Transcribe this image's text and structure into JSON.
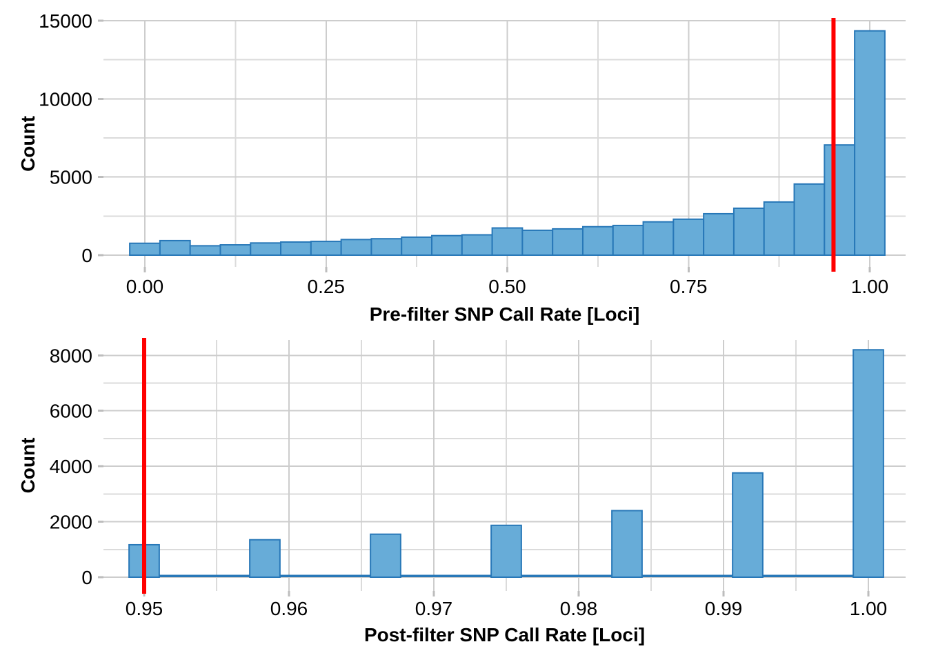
{
  "figure": {
    "background": "#FFFFFF",
    "description": "Two stacked histograms of SNP call rates with red threshold line at 0.95"
  },
  "colors": {
    "bar_fill": "#67ACD8",
    "bar_stroke": "#2878B8",
    "threshold_line": "#FF0000",
    "grid_major": "#CDCDCD",
    "grid_minor": "#DBDBDB",
    "axis_tick": "#BDBDBD",
    "text": "#000000"
  },
  "chart_data": [
    {
      "type": "bar",
      "name": "pre-filter-histogram",
      "title": "",
      "xlabel": "Pre-filter SNP Call Rate [Loci]",
      "ylabel": "Count",
      "legend": "none",
      "grid": true,
      "xlim": [
        -0.057,
        1.063
      ],
      "ylim": [
        0,
        15000
      ],
      "bin_width": 0.041667,
      "x": [
        0.0,
        0.041667,
        0.083333,
        0.125,
        0.166667,
        0.208333,
        0.25,
        0.291667,
        0.333333,
        0.375,
        0.416667,
        0.458333,
        0.5,
        0.541667,
        0.583333,
        0.625,
        0.666667,
        0.708333,
        0.75,
        0.791667,
        0.833333,
        0.875,
        0.916667,
        0.958333,
        1.0
      ],
      "counts": [
        760,
        930,
        600,
        660,
        780,
        840,
        880,
        1000,
        1050,
        1150,
        1250,
        1300,
        1740,
        1590,
        1680,
        1820,
        1900,
        2130,
        2300,
        2650,
        3000,
        3400,
        4550,
        7050,
        14350
      ],
      "vline_x": 0.95,
      "x_ticks": {
        "major": [
          0.0,
          0.25,
          0.5,
          0.75,
          1.0
        ],
        "labels": [
          "0.00",
          "0.25",
          "0.50",
          "0.75",
          "1.00"
        ],
        "minor": [
          0.125,
          0.375,
          0.625,
          0.875
        ]
      },
      "y_ticks": {
        "major": [
          0,
          5000,
          10000,
          15000
        ],
        "labels": [
          "0",
          "5000",
          "10000",
          "15000"
        ],
        "minor": [
          2500,
          7500,
          12500
        ]
      }
    },
    {
      "type": "bar",
      "name": "post-filter-histogram",
      "title": "",
      "xlabel": "Post-filter SNP Call Rate [Loci]",
      "ylabel": "Count",
      "legend": "none",
      "grid": true,
      "xlim": [
        0.9472,
        1.0052
      ],
      "ylim": [
        0,
        8550
      ],
      "bin_width": 0.002083,
      "x": [
        0.95,
        0.958333,
        0.966667,
        0.975,
        0.983333,
        0.991667,
        1.0
      ],
      "counts": [
        1170,
        1350,
        1550,
        1870,
        2400,
        3760,
        8200
      ],
      "floor": {
        "x_from": 0.948958,
        "x_to": 1.001042,
        "count": 40
      },
      "vline_x": 0.95,
      "x_ticks": {
        "major": [
          0.95,
          0.96,
          0.97,
          0.98,
          0.99,
          1.0
        ],
        "labels": [
          "0.95",
          "0.96",
          "0.97",
          "0.98",
          "0.99",
          "1.00"
        ],
        "minor": [
          0.955,
          0.965,
          0.975,
          0.985,
          0.995
        ]
      },
      "y_ticks": {
        "major": [
          0,
          2000,
          4000,
          6000,
          8000
        ],
        "labels": [
          "0",
          "2000",
          "4000",
          "6000",
          "8000"
        ],
        "minor": [
          1000,
          3000,
          5000,
          7000
        ]
      }
    }
  ]
}
